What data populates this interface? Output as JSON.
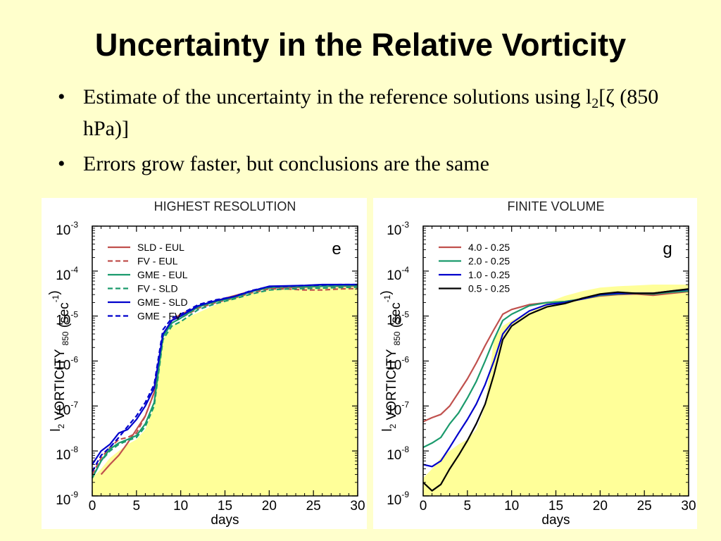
{
  "slide": {
    "title": "Uncertainty in the Relative Vorticity",
    "bullets": [
      {
        "pre": "Estimate of the uncertainty in the reference solutions using l",
        "sub": "2",
        "post": "[ζ (850 hPa)]"
      },
      {
        "pre": "Errors grow faster, but conclusions are the same",
        "sub": "",
        "post": ""
      }
    ]
  },
  "colors": {
    "background": "#ffffcc",
    "fill": "#ffff99",
    "red": "#c0504d",
    "green": "#1a9a6c",
    "blue": "#0000cc",
    "black": "#000000"
  },
  "chart_data": [
    {
      "type": "line",
      "title": "HIGHEST RESOLUTION",
      "panel_label": "e",
      "xlabel": "days",
      "ylabel": "l2 VORTICITY 850 (sec-1)",
      "yscale": "log",
      "xlim": [
        0,
        30
      ],
      "ylim_exp": [
        -9,
        -3
      ],
      "x_ticks": [
        "0",
        "5",
        "10",
        "15",
        "20",
        "25",
        "30"
      ],
      "y_ticks_exp": [
        "-3",
        "-4",
        "-5",
        "-6",
        "-7",
        "-8",
        "-9"
      ],
      "legend_position": "top-left",
      "background_band": {
        "x": [
          0,
          1,
          2,
          3,
          4,
          5,
          6,
          7,
          8,
          9,
          10,
          12,
          14,
          16,
          18,
          20,
          22,
          24,
          26,
          28,
          30
        ],
        "y": [
          2.5e-09,
          4e-09,
          7e-09,
          1e-08,
          1.4e-08,
          1.8e-08,
          3e-08,
          1e-07,
          3e-06,
          6e-06,
          8e-06,
          1.2e-05,
          1.8e-05,
          2.5e-05,
          3.2e-05,
          3.8e-05,
          4e-05,
          4.2e-05,
          4.3e-05,
          4.4e-05,
          4.5e-05
        ]
      },
      "series": [
        {
          "name": "SLD - EUL",
          "color": "#c0504d",
          "dash": "solid",
          "x": [
            1,
            2,
            3,
            4,
            5,
            6,
            7,
            8,
            9,
            10,
            12,
            14,
            16,
            18,
            20,
            22,
            24,
            26,
            28,
            30
          ],
          "y": [
            3e-09,
            5e-09,
            8e-09,
            1.5e-08,
            3e-08,
            6e-08,
            2e-07,
            3.5e-06,
            8e-06,
            1.1e-05,
            1.6e-05,
            2.2e-05,
            2.8e-05,
            3.6e-05,
            4.2e-05,
            4.3e-05,
            4.4e-05,
            4.6e-05,
            4.6e-05,
            4.7e-05
          ]
        },
        {
          "name": "FV - EUL",
          "color": "#c0504d",
          "dash": "dash",
          "x": [
            0,
            1,
            2,
            3,
            4,
            5,
            6,
            7,
            8,
            9,
            10,
            12,
            14,
            16,
            18,
            20,
            22,
            24,
            26,
            28,
            30
          ],
          "y": [
            3e-09,
            7e-09,
            1.2e-08,
            1.8e-08,
            2e-08,
            2.5e-08,
            6e-08,
            2e-07,
            4e-06,
            7e-06,
            9e-06,
            1.5e-05,
            2e-05,
            2.5e-05,
            3.3e-05,
            4e-05,
            4e-05,
            3.8e-05,
            3.8e-05,
            4e-05,
            4.1e-05
          ]
        },
        {
          "name": "GME - EUL",
          "color": "#1a9a6c",
          "dash": "solid",
          "x": [
            0,
            1,
            2,
            3,
            4,
            5,
            6,
            7,
            8,
            9,
            10,
            12,
            14,
            16,
            18,
            20,
            22,
            24,
            26,
            28,
            30
          ],
          "y": [
            2.5e-09,
            6e-09,
            1.1e-08,
            1.5e-08,
            1.8e-08,
            2.2e-08,
            4e-08,
            1.2e-07,
            3.5e-06,
            7e-06,
            9e-06,
            1.6e-05,
            2.1e-05,
            2.6e-05,
            3.5e-05,
            4.3e-05,
            4.5e-05,
            4.5e-05,
            4.6e-05,
            4.7e-05,
            4.8e-05
          ]
        },
        {
          "name": "FV - SLD",
          "color": "#1a9a6c",
          "dash": "dash",
          "x": [
            0,
            1,
            2,
            3,
            4,
            5,
            6,
            7,
            8,
            9,
            10,
            12,
            14,
            16,
            18,
            20,
            22,
            24,
            26,
            28,
            30
          ],
          "y": [
            2.5e-09,
            6e-09,
            1e-08,
            1.4e-08,
            1.7e-08,
            2e-08,
            3.5e-08,
            1e-07,
            3e-06,
            6e-06,
            7.5e-06,
            1.4e-05,
            1.9e-05,
            2.4e-05,
            3.1e-05,
            3.8e-05,
            4e-05,
            4.1e-05,
            4.2e-05,
            4.3e-05,
            4.4e-05
          ]
        },
        {
          "name": "GME - SLD",
          "color": "#0000cc",
          "dash": "solid",
          "x": [
            0,
            1,
            2,
            3,
            4,
            5,
            6,
            7,
            8,
            9,
            10,
            12,
            14,
            16,
            18,
            20,
            22,
            24,
            26,
            28,
            30
          ],
          "y": [
            5e-09,
            1e-08,
            1.4e-08,
            2.5e-08,
            3e-08,
            5e-08,
            1e-07,
            2.5e-07,
            4e-06,
            8e-06,
            1e-05,
            1.7e-05,
            2.2e-05,
            2.7e-05,
            3.6e-05,
            4.6e-05,
            4.7e-05,
            4.8e-05,
            5e-05,
            5e-05,
            5e-05
          ]
        },
        {
          "name": "GME - FV",
          "color": "#0000cc",
          "dash": "dash",
          "x": [
            0,
            1,
            2,
            3,
            4,
            5,
            6,
            7,
            8,
            9,
            10,
            12,
            14,
            16,
            18,
            20,
            22,
            24,
            26,
            28,
            30
          ],
          "y": [
            3.5e-09,
            8e-09,
            1.2e-08,
            2e-08,
            3.5e-08,
            6e-08,
            1.2e-07,
            3e-07,
            5e-06,
            9e-06,
            1.1e-05,
            1.8e-05,
            2.3e-05,
            2.7e-05,
            3.7e-05,
            4.5e-05,
            4.6e-05,
            4.8e-05,
            4.9e-05,
            5e-05,
            5e-05
          ]
        }
      ]
    },
    {
      "type": "line",
      "title": "FINITE VOLUME",
      "panel_label": "g",
      "xlabel": "days",
      "ylabel": "l2 VORTICITY 850 (sec-1)",
      "yscale": "log",
      "xlim": [
        0,
        30
      ],
      "ylim_exp": [
        -9,
        -3
      ],
      "x_ticks": [
        "0",
        "5",
        "10",
        "15",
        "20",
        "25",
        "30"
      ],
      "y_ticks_exp": [
        "-3",
        "-4",
        "-5",
        "-6",
        "-7",
        "-8",
        "-9"
      ],
      "legend_position": "top-left",
      "background_band": {
        "x": [
          0,
          1,
          2,
          3,
          4,
          5,
          6,
          7,
          8,
          9,
          10,
          12,
          14,
          16,
          18,
          20,
          22,
          24,
          26,
          28,
          30
        ],
        "y": [
          2.5e-09,
          4e-09,
          7e-09,
          1e-08,
          1.4e-08,
          1.8e-08,
          3e-08,
          1e-07,
          3e-06,
          6e-06,
          8e-06,
          1.2e-05,
          2e-05,
          2.8e-05,
          3.6e-05,
          4.3e-05,
          4.6e-05,
          4.8e-05,
          5e-05,
          5e-05,
          5e-05
        ]
      },
      "series": [
        {
          "name": "4.0 - 0.25",
          "color": "#c0504d",
          "dash": "solid",
          "x": [
            0,
            1,
            2,
            3,
            4,
            5,
            6,
            7,
            8,
            9,
            10,
            12,
            14,
            16,
            18,
            20,
            22,
            24,
            26,
            28,
            30
          ],
          "y": [
            4.5e-08,
            5.5e-08,
            6.5e-08,
            1e-07,
            2e-07,
            4e-07,
            9e-07,
            2.2e-06,
            5e-06,
            1.1e-05,
            1.4e-05,
            1.8e-05,
            2e-05,
            2.1e-05,
            2.4e-05,
            2.8e-05,
            3e-05,
            3.1e-05,
            2.9e-05,
            3.2e-05,
            3.5e-05
          ]
        },
        {
          "name": "2.0 - 0.25",
          "color": "#1a9a6c",
          "dash": "solid",
          "x": [
            0,
            1,
            2,
            3,
            4,
            5,
            6,
            7,
            8,
            9,
            10,
            12,
            14,
            16,
            18,
            20,
            22,
            24,
            26,
            28,
            30
          ],
          "y": [
            1.2e-08,
            1.5e-08,
            2e-08,
            4e-08,
            7e-08,
            1.5e-07,
            3.5e-07,
            1e-06,
            3e-06,
            8e-06,
            1.1e-05,
            1.7e-05,
            2e-05,
            2.1e-05,
            2.4e-05,
            2.9e-05,
            3.1e-05,
            3.2e-05,
            3.1e-05,
            3.4e-05,
            3.6e-05
          ]
        },
        {
          "name": "1.0 - 0.25",
          "color": "#0000cc",
          "dash": "solid",
          "x": [
            0,
            1,
            2,
            3,
            4,
            5,
            6,
            7,
            8,
            9,
            10,
            12,
            14,
            16,
            18,
            20,
            22,
            24,
            26,
            28,
            30
          ],
          "y": [
            5e-09,
            4.5e-09,
            6e-09,
            1.2e-08,
            2.5e-08,
            5e-08,
            1.1e-07,
            3e-07,
            1e-06,
            4e-06,
            7e-06,
            1.3e-05,
            1.8e-05,
            2e-05,
            2.4e-05,
            3e-05,
            3.2e-05,
            3.2e-05,
            3.2e-05,
            3.6e-05,
            3.9e-05
          ]
        },
        {
          "name": "0.5 - 0.25",
          "color": "#000000",
          "dash": "solid",
          "x": [
            0,
            1,
            2,
            3,
            4,
            5,
            6,
            7,
            8,
            9,
            10,
            12,
            14,
            16,
            18,
            20,
            22,
            24,
            26,
            28,
            30
          ],
          "y": [
            2e-09,
            1.3e-09,
            1.8e-09,
            4e-09,
            8e-09,
            1.7e-08,
            4e-08,
            1.1e-07,
            5e-07,
            3e-06,
            6e-06,
            1.1e-05,
            1.6e-05,
            1.9e-05,
            2.5e-05,
            3.1e-05,
            3.4e-05,
            3.2e-05,
            3.2e-05,
            3.6e-05,
            4e-05
          ]
        }
      ]
    }
  ]
}
